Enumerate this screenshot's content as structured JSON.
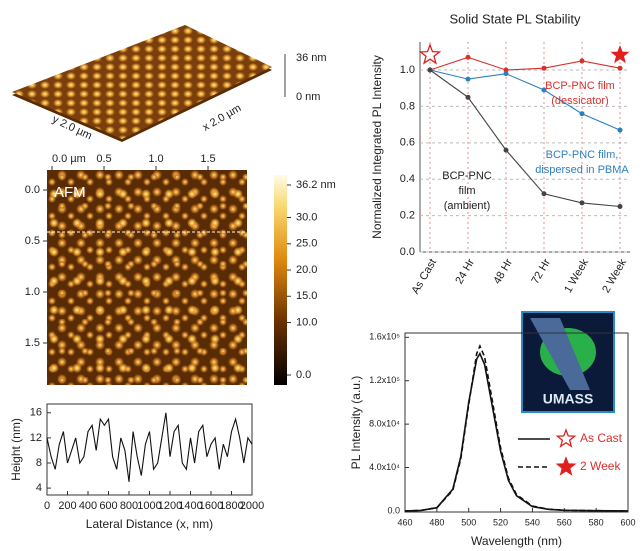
{
  "chart_data": [
    {
      "type": "surface",
      "zlabels": [
        "36 nm",
        "0 nm"
      ],
      "ylabel": "y 2.0 µm",
      "xlabel": "x 2.0 µm"
    },
    {
      "type": "image",
      "label": "AFM",
      "xlim": [
        0,
        2
      ],
      "ylim": [
        0,
        2
      ],
      "xticks": [
        {
          "value": 0,
          "label": "0.0 µm"
        },
        0.5,
        {
          "value": 1,
          "label": "1.0"
        },
        1.5
      ],
      "yticks": [
        {
          "value": 0,
          "label": "0.0"
        },
        0.5,
        {
          "value": 1,
          "label": "1.0"
        },
        1.5
      ],
      "clim": [
        -1.9,
        38.1
      ],
      "cticks": [
        {
          "value": 36.2,
          "label": "36.2 nm"
        },
        {
          "value": 30,
          "label": "30.0"
        },
        {
          "value": 25,
          "label": "25.0"
        },
        {
          "value": 20,
          "label": "20.0"
        },
        {
          "value": 15,
          "label": "15.0"
        },
        {
          "value": 10,
          "label": "10.0"
        },
        {
          "value": 0,
          "label": "0.0"
        }
      ]
    },
    {
      "type": "line",
      "xlabel": "Lateral Distance (x, nm)",
      "ylabel": "Height (nm)",
      "x": [
        0,
        40,
        80,
        120,
        160,
        200,
        240,
        280,
        320,
        360,
        400,
        440,
        480,
        520,
        560,
        600,
        640,
        680,
        720,
        760,
        800,
        840,
        880,
        920,
        960,
        1000,
        1040,
        1080,
        1120,
        1160,
        1200,
        1240,
        1280,
        1320,
        1360,
        1400,
        1440,
        1480,
        1520,
        1560,
        1600,
        1640,
        1680,
        1720,
        1760,
        1800,
        1840,
        1880,
        1920,
        1960,
        2000
      ],
      "series": [
        {
          "color": "#111111",
          "values": [
            12,
            9,
            7,
            11,
            13,
            8,
            10,
            12,
            8,
            9,
            13,
            14,
            10,
            15,
            14,
            15,
            9,
            7,
            12,
            10,
            5,
            13,
            9,
            6,
            11,
            13,
            7,
            8,
            12,
            16,
            9,
            13,
            14,
            8,
            7,
            12,
            8,
            13,
            14,
            9,
            11,
            12,
            7,
            11,
            9,
            13,
            15,
            12,
            8,
            12,
            11
          ]
        }
      ],
      "xlim": [
        0,
        2000
      ],
      "ylim": [
        2.9,
        17.4
      ],
      "xticks": [
        0,
        200,
        400,
        600,
        800,
        1000,
        1200,
        1400,
        1600,
        1800,
        2000
      ],
      "yticks": [
        4,
        8,
        12,
        16
      ]
    },
    {
      "type": "line",
      "title": "Solid State PL Stability",
      "ylabel": "Normalized Integrated PL Intensity",
      "categories": [
        "As Cast",
        "24 Hr",
        "48 Hr",
        "72 Hr",
        "1 Week",
        "2 Week"
      ],
      "series": [
        {
          "color": "#d9302c",
          "values": [
            1.0,
            1.07,
            1.0,
            1.01,
            1.05,
            1.01
          ]
        },
        {
          "color": "#2e7fc0",
          "values": [
            1.0,
            0.95,
            0.98,
            0.89,
            0.76,
            0.67
          ]
        },
        {
          "color": "#444444",
          "values": [
            1.0,
            0.85,
            0.56,
            0.32,
            0.27,
            0.25
          ]
        }
      ],
      "ylim": [
        0,
        1.154
      ],
      "yticks": [
        {
          "value": 0,
          "label": "0.0"
        },
        0.2,
        0.4,
        0.6,
        0.8,
        {
          "value": 1,
          "label": "1.0"
        }
      ],
      "grid": true,
      "annotations": [
        {
          "lines": [
            "BCP-PNC film",
            "(dessicator)"
          ],
          "color": "#d9302c"
        },
        {
          "lines": [
            "BCP-PNC film,",
            "dispersed in PBMA"
          ],
          "color": "#2e7fc0"
        },
        {
          "lines": [
            "BCP-PNC",
            "film",
            "(ambient)"
          ],
          "color": "#222222"
        }
      ]
    },
    {
      "type": "line",
      "xlabel": "Wavelength (nm)",
      "ylabel": "PL Intensity (a.u.)",
      "x": [
        460,
        470,
        480,
        490,
        495,
        500,
        505,
        507,
        510,
        515,
        520,
        525,
        530,
        540,
        550,
        560,
        580,
        600
      ],
      "series": [
        {
          "name": "As Cast",
          "color": "#111111",
          "dash": false,
          "values": [
            0,
            500,
            3000,
            20000,
            50000,
            100000,
            140000,
            145000,
            135000,
            95000,
            55000,
            28000,
            14000,
            4000,
            1500,
            600,
            200,
            0
          ]
        },
        {
          "name": "2 Week",
          "color": "#111111",
          "dash": true,
          "values": [
            0,
            500,
            3000,
            19000,
            48000,
            98000,
            145000,
            152000,
            142000,
            100000,
            58000,
            30000,
            15000,
            4500,
            1600,
            700,
            200,
            0
          ]
        }
      ],
      "xlim": [
        460,
        600
      ],
      "ylim": [
        -1000,
        164000
      ],
      "xticks": [
        460,
        480,
        500,
        520,
        540,
        560,
        580,
        600
      ],
      "yticks": [
        {
          "value": 0,
          "label": "0.0"
        },
        {
          "value": 40000,
          "label": "4.0x10⁴"
        },
        {
          "value": 80000,
          "label": "8.0x10⁴"
        },
        {
          "value": 120000,
          "label": "1.2x10⁵"
        },
        {
          "value": 160000,
          "label": "1.6x10⁵"
        }
      ]
    }
  ],
  "logo": {
    "text": "UMASS"
  }
}
